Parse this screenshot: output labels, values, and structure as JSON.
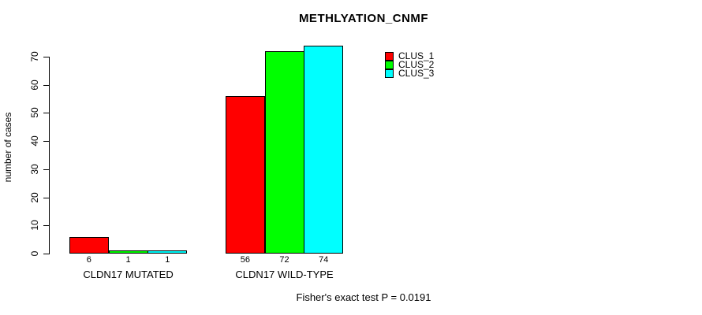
{
  "title": "METHLYATION_CNMF",
  "ylabel": "number of cases",
  "footer": "Fisher's exact test P = 0.0191",
  "legend": {
    "items": [
      {
        "label": "CLUS_1",
        "color": "#ff0000"
      },
      {
        "label": "CLUS_2",
        "color": "#00ff00"
      },
      {
        "label": "CLUS_3",
        "color": "#00ffff"
      }
    ]
  },
  "chart_data": {
    "type": "bar",
    "title": "METHLYATION_CNMF",
    "xlabel": "",
    "ylabel": "number of cases",
    "categories": [
      "CLDN17 MUTATED",
      "CLDN17 WILD-TYPE"
    ],
    "series": [
      {
        "name": "CLUS_1",
        "color": "#ff0000",
        "values": [
          6,
          56
        ]
      },
      {
        "name": "CLUS_2",
        "color": "#00ff00",
        "values": [
          1,
          72
        ]
      },
      {
        "name": "CLUS_3",
        "color": "#00ffff",
        "values": [
          1,
          74
        ]
      }
    ],
    "bar_value_labels": [
      [
        "6",
        "1",
        "1"
      ],
      [
        "56",
        "72",
        "74"
      ]
    ],
    "ylim": [
      0,
      70
    ],
    "yticks": [
      0,
      10,
      20,
      30,
      40,
      50,
      60,
      70
    ],
    "grid": false,
    "legend_position": "upper-right-inside",
    "annotation": "Fisher's exact test P = 0.0191"
  }
}
